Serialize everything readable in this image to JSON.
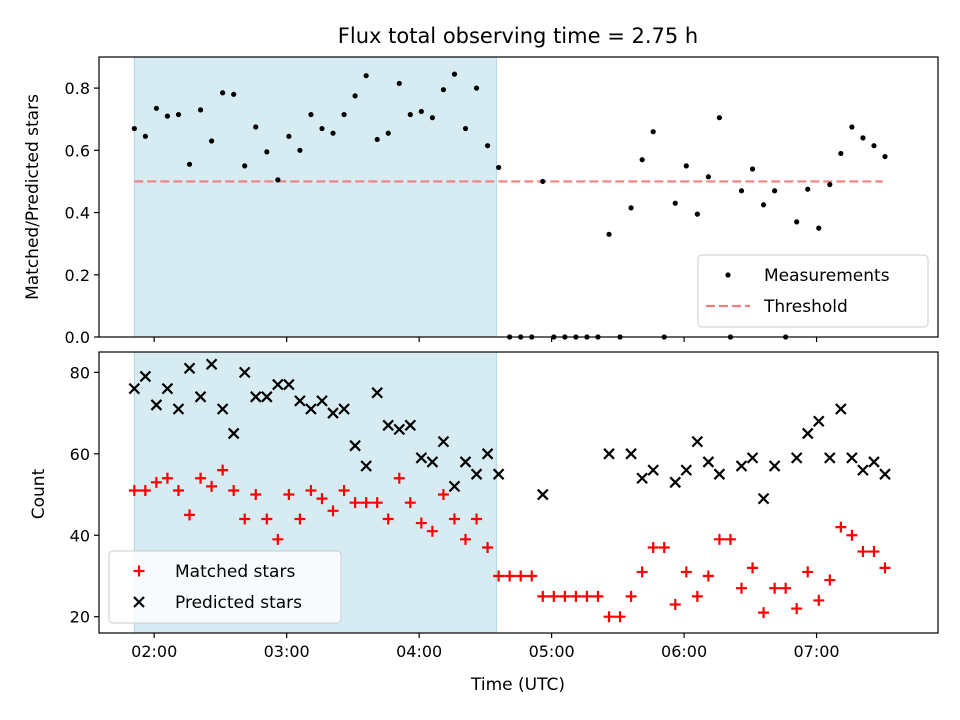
{
  "figure_title": "Flux total observing time = 2.75 h",
  "colors": {
    "shade": "#add8e6",
    "measurements": "#000000",
    "threshold": "#f08080",
    "matched": "#ff0000",
    "predicted": "#000000"
  },
  "chart_data": [
    {
      "type": "scatter",
      "title": "Flux total observing time = 2.75 h",
      "xlabel": "",
      "ylabel": "Matched/Predicted stars",
      "x_type": "time (hours, UTC)",
      "xlim": [
        "01:35",
        "07:55"
      ],
      "ylim": [
        0,
        0.9
      ],
      "yticks": [
        "0.0",
        "0.2",
        "0.4",
        "0.6",
        "0.8"
      ],
      "xtick_labels_shown": false,
      "shaded_region": [
        "01:51",
        "04:35"
      ],
      "legend": {
        "placement": "lower right",
        "entries": [
          "Measurements",
          "Threshold"
        ]
      },
      "threshold": {
        "name": "Threshold",
        "value": 0.5,
        "x_range": [
          "01:51",
          "07:30"
        ],
        "style": "dashed"
      },
      "series": [
        {
          "name": "Measurements",
          "marker": "dot",
          "x": [
            "01:51",
            "01:56",
            "02:01",
            "02:06",
            "02:11",
            "02:16",
            "02:21",
            "02:26",
            "02:31",
            "02:36",
            "02:41",
            "02:46",
            "02:51",
            "02:56",
            "03:01",
            "03:06",
            "03:11",
            "03:16",
            "03:21",
            "03:26",
            "03:31",
            "03:36",
            "03:41",
            "03:46",
            "03:51",
            "03:56",
            "04:01",
            "04:06",
            "04:11",
            "04:16",
            "04:21",
            "04:26",
            "04:31",
            "04:36",
            "04:41",
            "04:46",
            "04:51",
            "04:56",
            "05:01",
            "05:06",
            "05:11",
            "05:16",
            "05:21",
            "05:26",
            "05:31",
            "05:36",
            "05:41",
            "05:46",
            "05:51",
            "05:56",
            "06:01",
            "06:06",
            "06:11",
            "06:16",
            "06:21",
            "06:26",
            "06:31",
            "06:36",
            "06:41",
            "06:46",
            "06:51",
            "06:56",
            "07:01",
            "07:06",
            "07:11",
            "07:16",
            "07:21",
            "07:26",
            "07:31"
          ],
          "y": [
            0.67,
            0.645,
            0.735,
            0.71,
            0.715,
            0.555,
            0.73,
            0.63,
            0.785,
            0.78,
            0.55,
            0.675,
            0.595,
            0.505,
            0.645,
            0.6,
            0.715,
            0.67,
            0.655,
            0.715,
            0.775,
            0.84,
            0.635,
            0.655,
            0.815,
            0.715,
            0.725,
            0.705,
            0.795,
            0.845,
            0.67,
            0.8,
            0.615,
            0.545,
            0.0,
            0.0,
            0.0,
            0.5,
            0.0,
            0.0,
            0.0,
            0.0,
            0.0,
            0.33,
            0.0,
            0.415,
            0.57,
            0.66,
            0.0,
            0.43,
            0.55,
            0.395,
            0.515,
            0.705,
            0.0,
            0.47,
            0.54,
            0.425,
            0.47,
            0.0,
            0.37,
            0.475,
            0.35,
            0.49,
            0.59,
            0.675,
            0.64,
            0.615,
            0.58
          ]
        }
      ]
    },
    {
      "type": "scatter",
      "xlabel": "Time (UTC)",
      "ylabel": "Count",
      "x_type": "time (hours, UTC)",
      "xlim": [
        "01:35",
        "07:55"
      ],
      "xticks": [
        "02:00",
        "03:00",
        "04:00",
        "05:00",
        "06:00",
        "07:00"
      ],
      "ylim": [
        16,
        85
      ],
      "yticks": [
        "20",
        "40",
        "60",
        "80"
      ],
      "shaded_region": [
        "01:51",
        "04:35"
      ],
      "legend": {
        "placement": "lower left",
        "entries": [
          "Matched stars",
          "Predicted stars"
        ]
      },
      "series": [
        {
          "name": "Matched stars",
          "marker": "plus",
          "x": [
            "01:51",
            "01:56",
            "02:01",
            "02:06",
            "02:11",
            "02:16",
            "02:21",
            "02:26",
            "02:31",
            "02:36",
            "02:41",
            "02:46",
            "02:51",
            "02:56",
            "03:01",
            "03:06",
            "03:11",
            "03:16",
            "03:21",
            "03:26",
            "03:31",
            "03:36",
            "03:41",
            "03:46",
            "03:51",
            "03:56",
            "04:01",
            "04:06",
            "04:11",
            "04:16",
            "04:21",
            "04:26",
            "04:31",
            "04:36",
            "04:41",
            "04:46",
            "04:51",
            "04:56",
            "05:01",
            "05:06",
            "05:11",
            "05:16",
            "05:21",
            "05:26",
            "05:31",
            "05:36",
            "05:41",
            "05:46",
            "05:51",
            "05:56",
            "06:01",
            "06:06",
            "06:11",
            "06:16",
            "06:21",
            "06:26",
            "06:31",
            "06:36",
            "06:41",
            "06:46",
            "06:51",
            "06:56",
            "07:01",
            "07:06",
            "07:11",
            "07:16",
            "07:21",
            "07:26",
            "07:31"
          ],
          "y": [
            51,
            51,
            53,
            54,
            51,
            45,
            54,
            52,
            56,
            51,
            44,
            50,
            44,
            39,
            50,
            44,
            51,
            49,
            46,
            51,
            48,
            48,
            48,
            44,
            54,
            48,
            43,
            41,
            50,
            44,
            39,
            44,
            37,
            30,
            30,
            30,
            30,
            25,
            25,
            25,
            25,
            25,
            25,
            20,
            20,
            25,
            31,
            37,
            37,
            23,
            31,
            25,
            30,
            39,
            39,
            27,
            32,
            21,
            27,
            27,
            22,
            31,
            24,
            29,
            42,
            40,
            36,
            36,
            32
          ]
        },
        {
          "name": "Predicted stars",
          "marker": "x",
          "x": [
            "01:51",
            "01:56",
            "02:01",
            "02:06",
            "02:11",
            "02:16",
            "02:21",
            "02:26",
            "02:31",
            "02:36",
            "02:41",
            "02:46",
            "02:51",
            "02:56",
            "03:01",
            "03:06",
            "03:11",
            "03:16",
            "03:21",
            "03:26",
            "03:31",
            "03:36",
            "03:41",
            "03:46",
            "03:51",
            "03:56",
            "04:01",
            "04:06",
            "04:11",
            "04:16",
            "04:21",
            "04:26",
            "04:31",
            "04:36",
            "04:56",
            "05:26",
            "05:36",
            "05:41",
            "05:46",
            "05:56",
            "06:01",
            "06:06",
            "06:11",
            "06:16",
            "06:26",
            "06:31",
            "06:36",
            "06:41",
            "06:51",
            "06:56",
            "07:01",
            "07:06",
            "07:11",
            "07:16",
            "07:21",
            "07:26",
            "07:31"
          ],
          "y": [
            76,
            79,
            72,
            76,
            71,
            81,
            74,
            82,
            71,
            65,
            80,
            74,
            74,
            77,
            77,
            73,
            71,
            73,
            70,
            71,
            62,
            57,
            75,
            67,
            66,
            67,
            59,
            58,
            63,
            52,
            58,
            55,
            60,
            55,
            50,
            60,
            60,
            54,
            56,
            53,
            56,
            63,
            58,
            55,
            57,
            59,
            49,
            57,
            59,
            65,
            68,
            59,
            71,
            59,
            56,
            58,
            55
          ]
        }
      ]
    }
  ]
}
